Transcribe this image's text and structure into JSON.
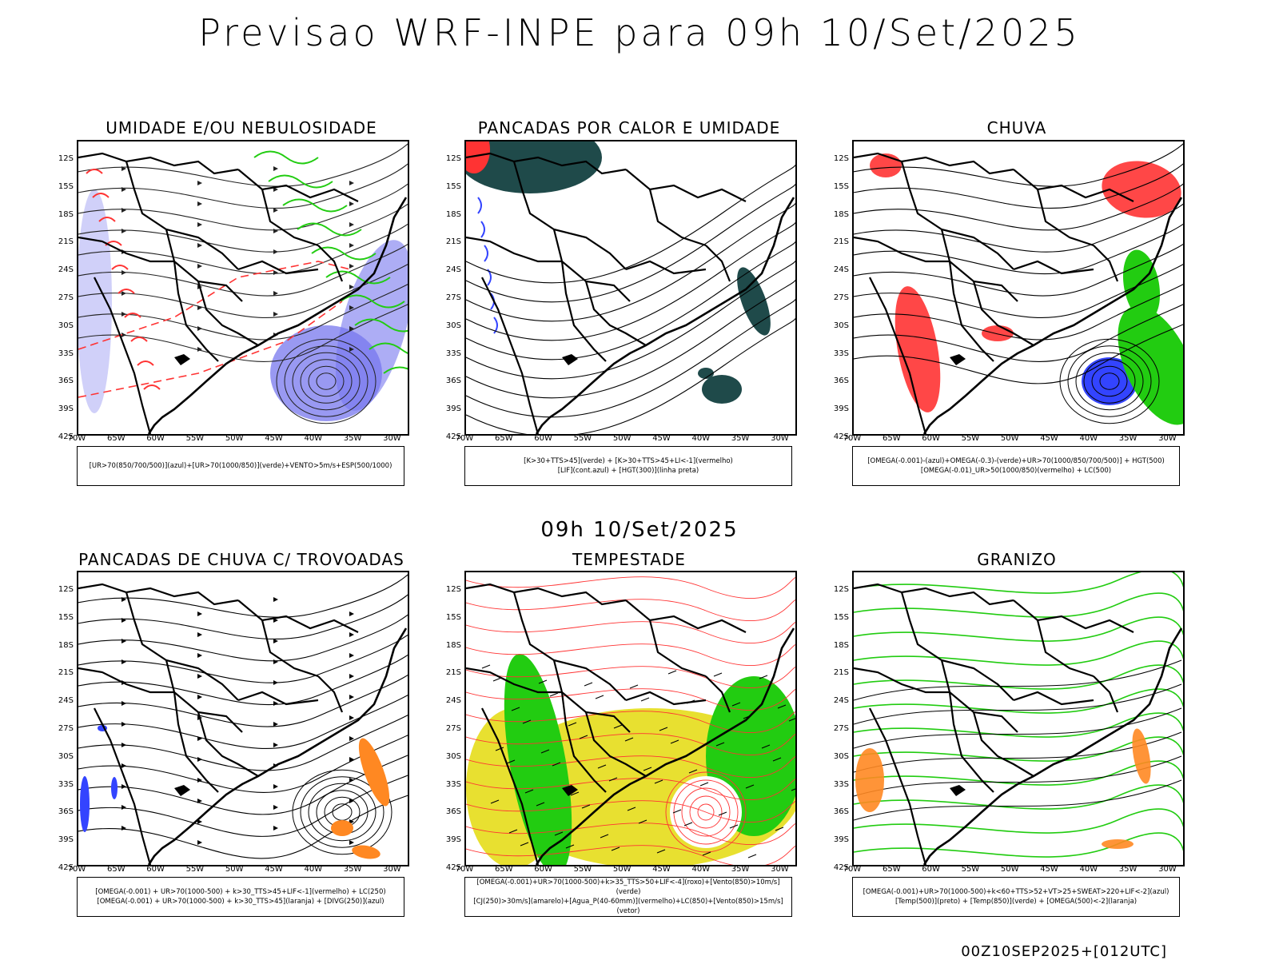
{
  "main_title": "Previsao WRF-INPE  para 09h 10/Set/2025",
  "mid_title": "09h 10/Set/2025",
  "footer_code": "00Z10SEP2025+[012UTC]",
  "lat_labels": [
    "12S",
    "15S",
    "18S",
    "21S",
    "24S",
    "27S",
    "30S",
    "33S",
    "36S",
    "39S",
    "42S"
  ],
  "lon_labels": [
    "70W",
    "65W",
    "60W",
    "55W",
    "50W",
    "45W",
    "40W",
    "35W",
    "30W"
  ],
  "colors": {
    "blue": "#3344ff",
    "green": "#22cc11",
    "red": "#ff3333",
    "dark_teal": "#1f4a4a",
    "yellow": "#e8e030",
    "orange": "#ff8822",
    "violet": "#7777ee"
  },
  "panels": [
    {
      "title": "UMIDADE E/OU NEBULOSIDADE",
      "legend": [
        "[UR>70(850/700/500)](azul)+[UR>70(1000/850)](verde)+VENTO>5m/s+ESP(500/1000)"
      ]
    },
    {
      "title": "PANCADAS POR CALOR E UMIDADE",
      "legend": [
        "[K>30+TTS>45](verde) + [K>30+TTS>45+LI<-1](vermelho)",
        "[LIF](cont.azul) + [HGT(300)](linha preta)"
      ]
    },
    {
      "title": "CHUVA",
      "legend": [
        "[OMEGA(-0.001)-(azul)+OMEGA(-0.3)-(verde)+UR>70(1000/850/700/500)] + HGT(500)",
        "[OMEGA(-0.01)_UR>50(1000/850)(vermelho) + LC(500)"
      ]
    },
    {
      "title": "PANCADAS DE CHUVA C/ TROVOADAS",
      "legend": [
        "[OMEGA(-0.001) + UR>70(1000-500) + k>30_TTS>45+LIF<-1](vermelho) + LC(250)",
        "[OMEGA(-0.001) + UR>70(1000-500) + k>30_TTS>45](laranja) + [DIVG(250)](azul)"
      ]
    },
    {
      "title": "TEMPESTADE",
      "legend": [
        "[OMEGA(-0.001)+UR>70(1000-500)+k>35_TTS>50+LIF<-4](roxo)+[Vento(850)>10m/s](verde)",
        "[CJ(250)>30m/s](amarelo)+[Agua_P(40-60mm)](vermelho)+LC(850)+[Vento(850)>15m/s](vetor)"
      ]
    },
    {
      "title": "GRANIZO",
      "legend": [
        "[OMEGA(-0.001)+UR>70(1000-500)+k<60+TTS>52+VT>25+SWEAT>220+LIF<-2](azul)",
        "[Temp(500)](preto) + [Temp(850)](verde) + [OMEGA(500)<-2](laranja)"
      ]
    }
  ]
}
